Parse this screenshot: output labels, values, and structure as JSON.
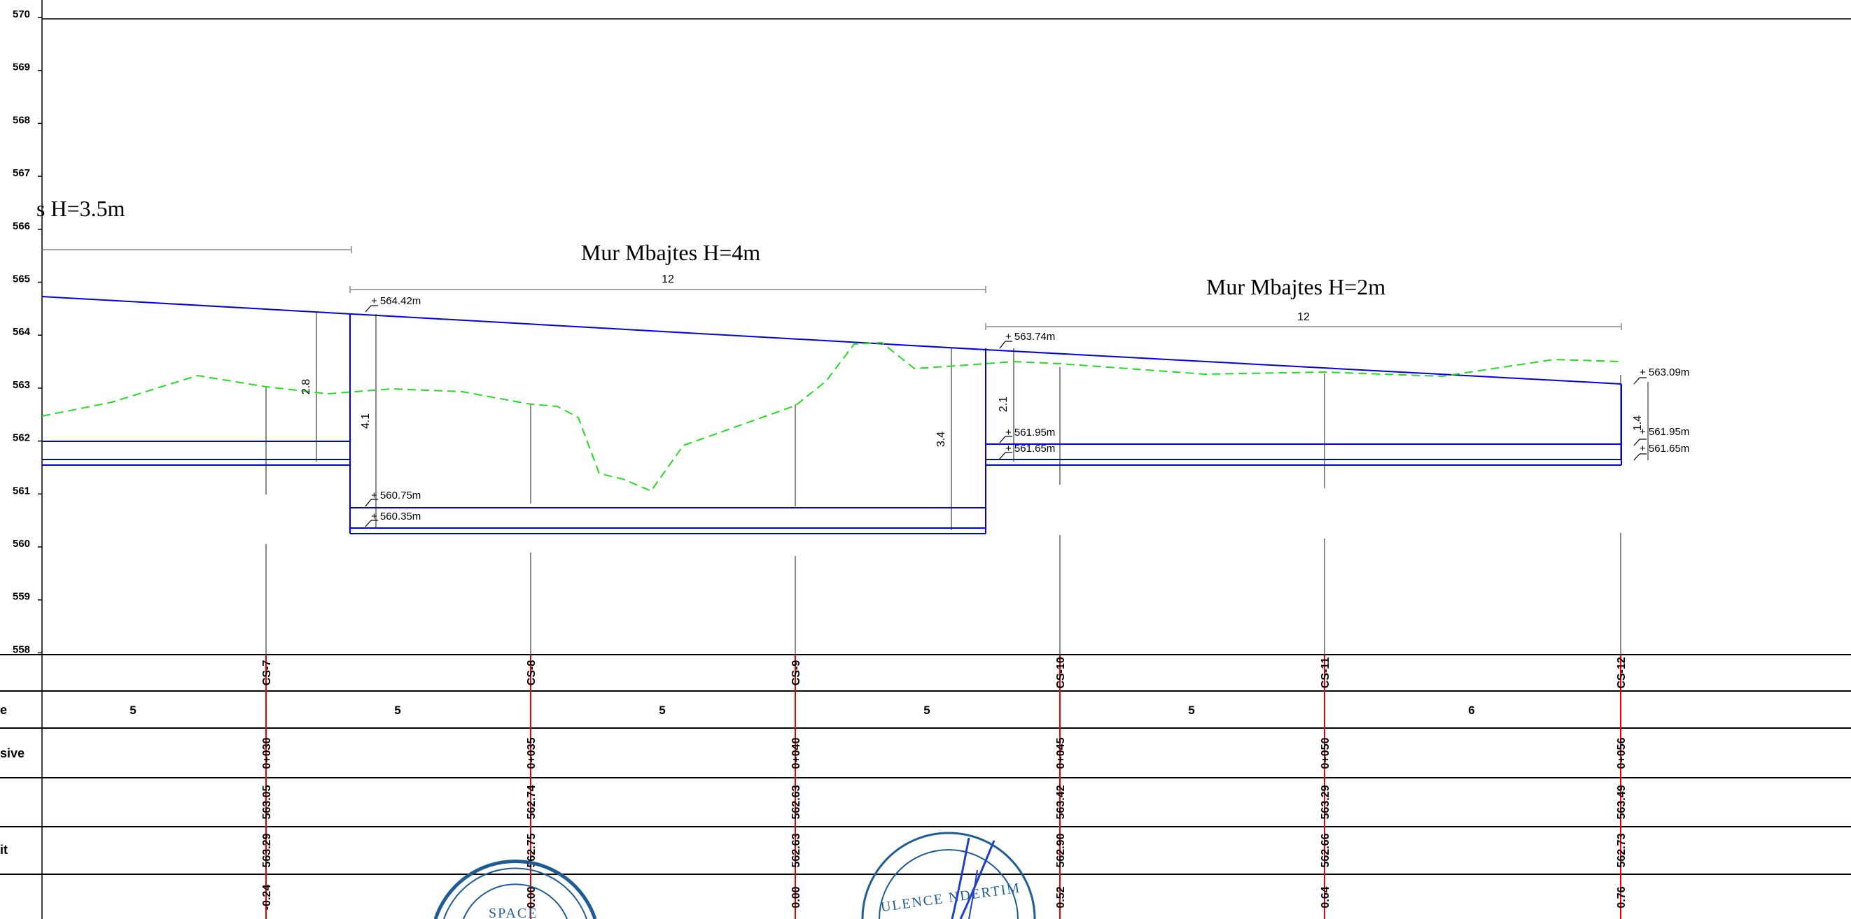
{
  "elevation_axis": {
    "ticks": [
      "570",
      "569",
      "568",
      "567",
      "566",
      "565",
      "564",
      "563",
      "562",
      "561",
      "560",
      "559",
      "558"
    ]
  },
  "walls": [
    {
      "title": "s H=3.5m"
    },
    {
      "title": "Mur Mbajtes H=4m",
      "dim": "12"
    },
    {
      "title": "Mur Mbajtes H=2m",
      "dim": "12"
    }
  ],
  "levels": [
    {
      "text": "+ 564.42m"
    },
    {
      "text": "+ 560.75m"
    },
    {
      "text": "+ 560.35m"
    },
    {
      "text": "+ 563.74m"
    },
    {
      "text": "+ 561.95m"
    },
    {
      "text": "+ 561.65m"
    },
    {
      "text": "+ 563.09m"
    },
    {
      "text": "+ 561.95m"
    },
    {
      "text": "+ 561.65m"
    }
  ],
  "heights": [
    "2.8",
    "4.1",
    "3.4",
    "2.1",
    "1.4"
  ],
  "table": {
    "row_labels": [
      "e",
      "sive",
      "",
      "it"
    ],
    "sections": [
      "CS-7",
      "CS-8",
      "CS-9",
      "CS-10",
      "CS-11",
      "CS-12"
    ],
    "distances": [
      "5",
      "5",
      "5",
      "5",
      "5",
      "6"
    ],
    "progressive": [
      "0+030",
      "0+035",
      "0+040",
      "0+045",
      "0+050",
      "0+056"
    ],
    "kuota_projekt": [
      "563.05",
      "562.74",
      "562.63",
      "563.42",
      "563.29",
      "563.49"
    ],
    "kuota_terren": [
      "563.29",
      "562.75",
      "562.63",
      "562.90",
      "562.66",
      "562.73"
    ],
    "diferenca": [
      "-0.24",
      "0.00",
      "0.00",
      "0.52",
      "0.64",
      "0.76"
    ]
  },
  "stamps": [
    {
      "text": "SPACE"
    },
    {
      "text": "ULENCE  NDERTIM"
    }
  ],
  "colors": {
    "design_line": "#0000e0",
    "terrain_line": "#22dd22",
    "grid": "#000000",
    "dimension": "#888888",
    "station_marker": "#ee0000",
    "stamp": "#1f5c96"
  }
}
